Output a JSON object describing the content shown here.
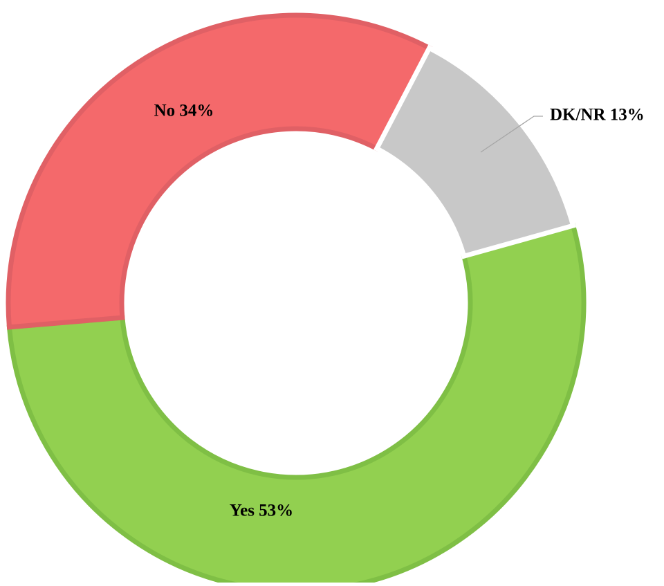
{
  "chart_data": {
    "type": "donut",
    "categories": [
      "Yes",
      "No",
      "DK/NR"
    ],
    "values": [
      53,
      34,
      13
    ],
    "value_labels": [
      "Yes 53%",
      "No 34%",
      "DK/NR 13%"
    ],
    "colors": [
      "#92d050",
      "#f4696b",
      "#c8c8c8"
    ]
  }
}
